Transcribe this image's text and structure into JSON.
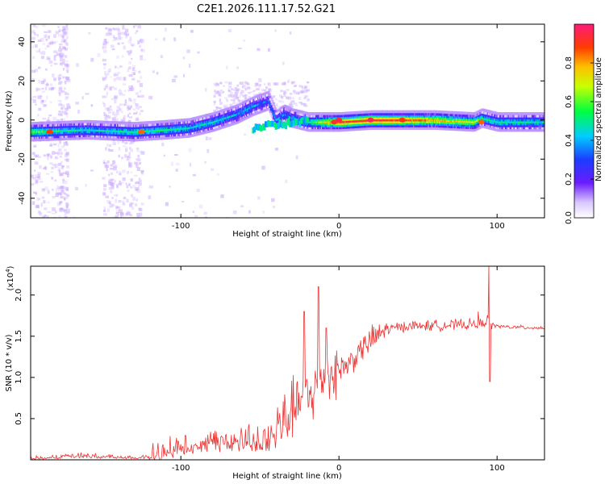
{
  "title": "C2E1.2026.111.17.52.G21",
  "colors": {
    "line": "#ee3333",
    "frame": "#000000"
  },
  "chart_data": [
    {
      "type": "heatmap",
      "xlabel": "Height of straight line (km)",
      "ylabel": "Frequency (Hz)",
      "xlim": [
        -195,
        130
      ],
      "ylim": [
        -50,
        49
      ],
      "xticks": [
        -100,
        0,
        100
      ],
      "xtick_labels": [
        "-100",
        "0",
        "100"
      ],
      "yticks": [
        -40,
        -20,
        0,
        20,
        40
      ],
      "ytick_labels": [
        "-40",
        "-20",
        "0",
        "20",
        "40"
      ],
      "colorbar": {
        "label": "Normalized spectral amplitude",
        "range": [
          0.0,
          1.0
        ],
        "ticks": [
          0.0,
          0.2,
          0.4,
          0.6,
          0.8
        ],
        "tick_labels": [
          "0.0",
          "0.2",
          "0.4",
          "0.6",
          "0.8"
        ]
      },
      "ridge": {
        "x": [
          -195,
          -160,
          -130,
          -110,
          -95,
          -80,
          -65,
          -55,
          -45,
          -40,
          -35,
          -30,
          -20,
          -10,
          0,
          20,
          40,
          60,
          85,
          90,
          100,
          130
        ],
        "frequency": [
          -6,
          -5,
          -6,
          -5,
          -4,
          -1,
          3,
          7,
          10,
          0,
          3,
          1,
          -1,
          -1,
          -1,
          0,
          0,
          0,
          -1,
          1,
          -1,
          -1
        ],
        "amplitude": [
          0.6,
          0.45,
          0.5,
          0.5,
          0.45,
          0.45,
          0.4,
          0.4,
          0.3,
          0.4,
          0.35,
          0.4,
          0.45,
          0.7,
          0.9,
          0.95,
          0.9,
          0.8,
          0.7,
          0.5,
          0.5,
          0.45
        ]
      }
    },
    {
      "type": "line",
      "xlabel": "Height of straight line (km)",
      "ylabel": "SNR (10 * v/v)",
      "scale_label": "(x10",
      "scale_exp": "4",
      "scale_close": ")",
      "xlim": [
        -195,
        130
      ],
      "ylim": [
        0,
        2.35
      ],
      "xticks": [
        -100,
        0,
        100
      ],
      "xtick_labels": [
        "-100",
        "0",
        "100"
      ],
      "yticks": [
        0.5,
        1.0,
        1.5,
        2.0
      ],
      "ytick_labels": [
        "0.5",
        "1.0",
        "1.5",
        "2.0"
      ],
      "series": [
        {
          "name": "SNR",
          "x": [
            -195,
            -180,
            -165,
            -150,
            -140,
            -130,
            -120,
            -110,
            -100,
            -90,
            -80,
            -70,
            -60,
            -50,
            -40,
            -35,
            -30,
            -25,
            -20,
            -15,
            -12,
            -10,
            -5,
            0,
            5,
            10,
            20,
            30,
            40,
            60,
            80,
            90,
            94,
            96,
            100,
            110,
            130
          ],
          "y": [
            0.02,
            0.04,
            0.06,
            0.05,
            0.04,
            0.03,
            0.05,
            0.12,
            0.2,
            0.25,
            0.28,
            0.27,
            0.28,
            0.3,
            0.38,
            0.45,
            0.6,
            0.7,
            0.75,
            0.85,
            0.95,
            1.0,
            1.05,
            1.1,
            1.15,
            1.25,
            1.45,
            1.58,
            1.62,
            1.63,
            1.64,
            1.65,
            1.7,
            1.65,
            1.62,
            1.61,
            1.6
          ]
        }
      ],
      "spikes": [
        {
          "x": -13,
          "y": 2.1
        },
        {
          "x": -22,
          "y": 1.8
        },
        {
          "x": -8,
          "y": 1.6
        },
        {
          "x": 95,
          "y": 2.35
        },
        {
          "x": 95.5,
          "y": 0.95
        },
        {
          "x": 88,
          "y": 1.8
        }
      ]
    }
  ]
}
